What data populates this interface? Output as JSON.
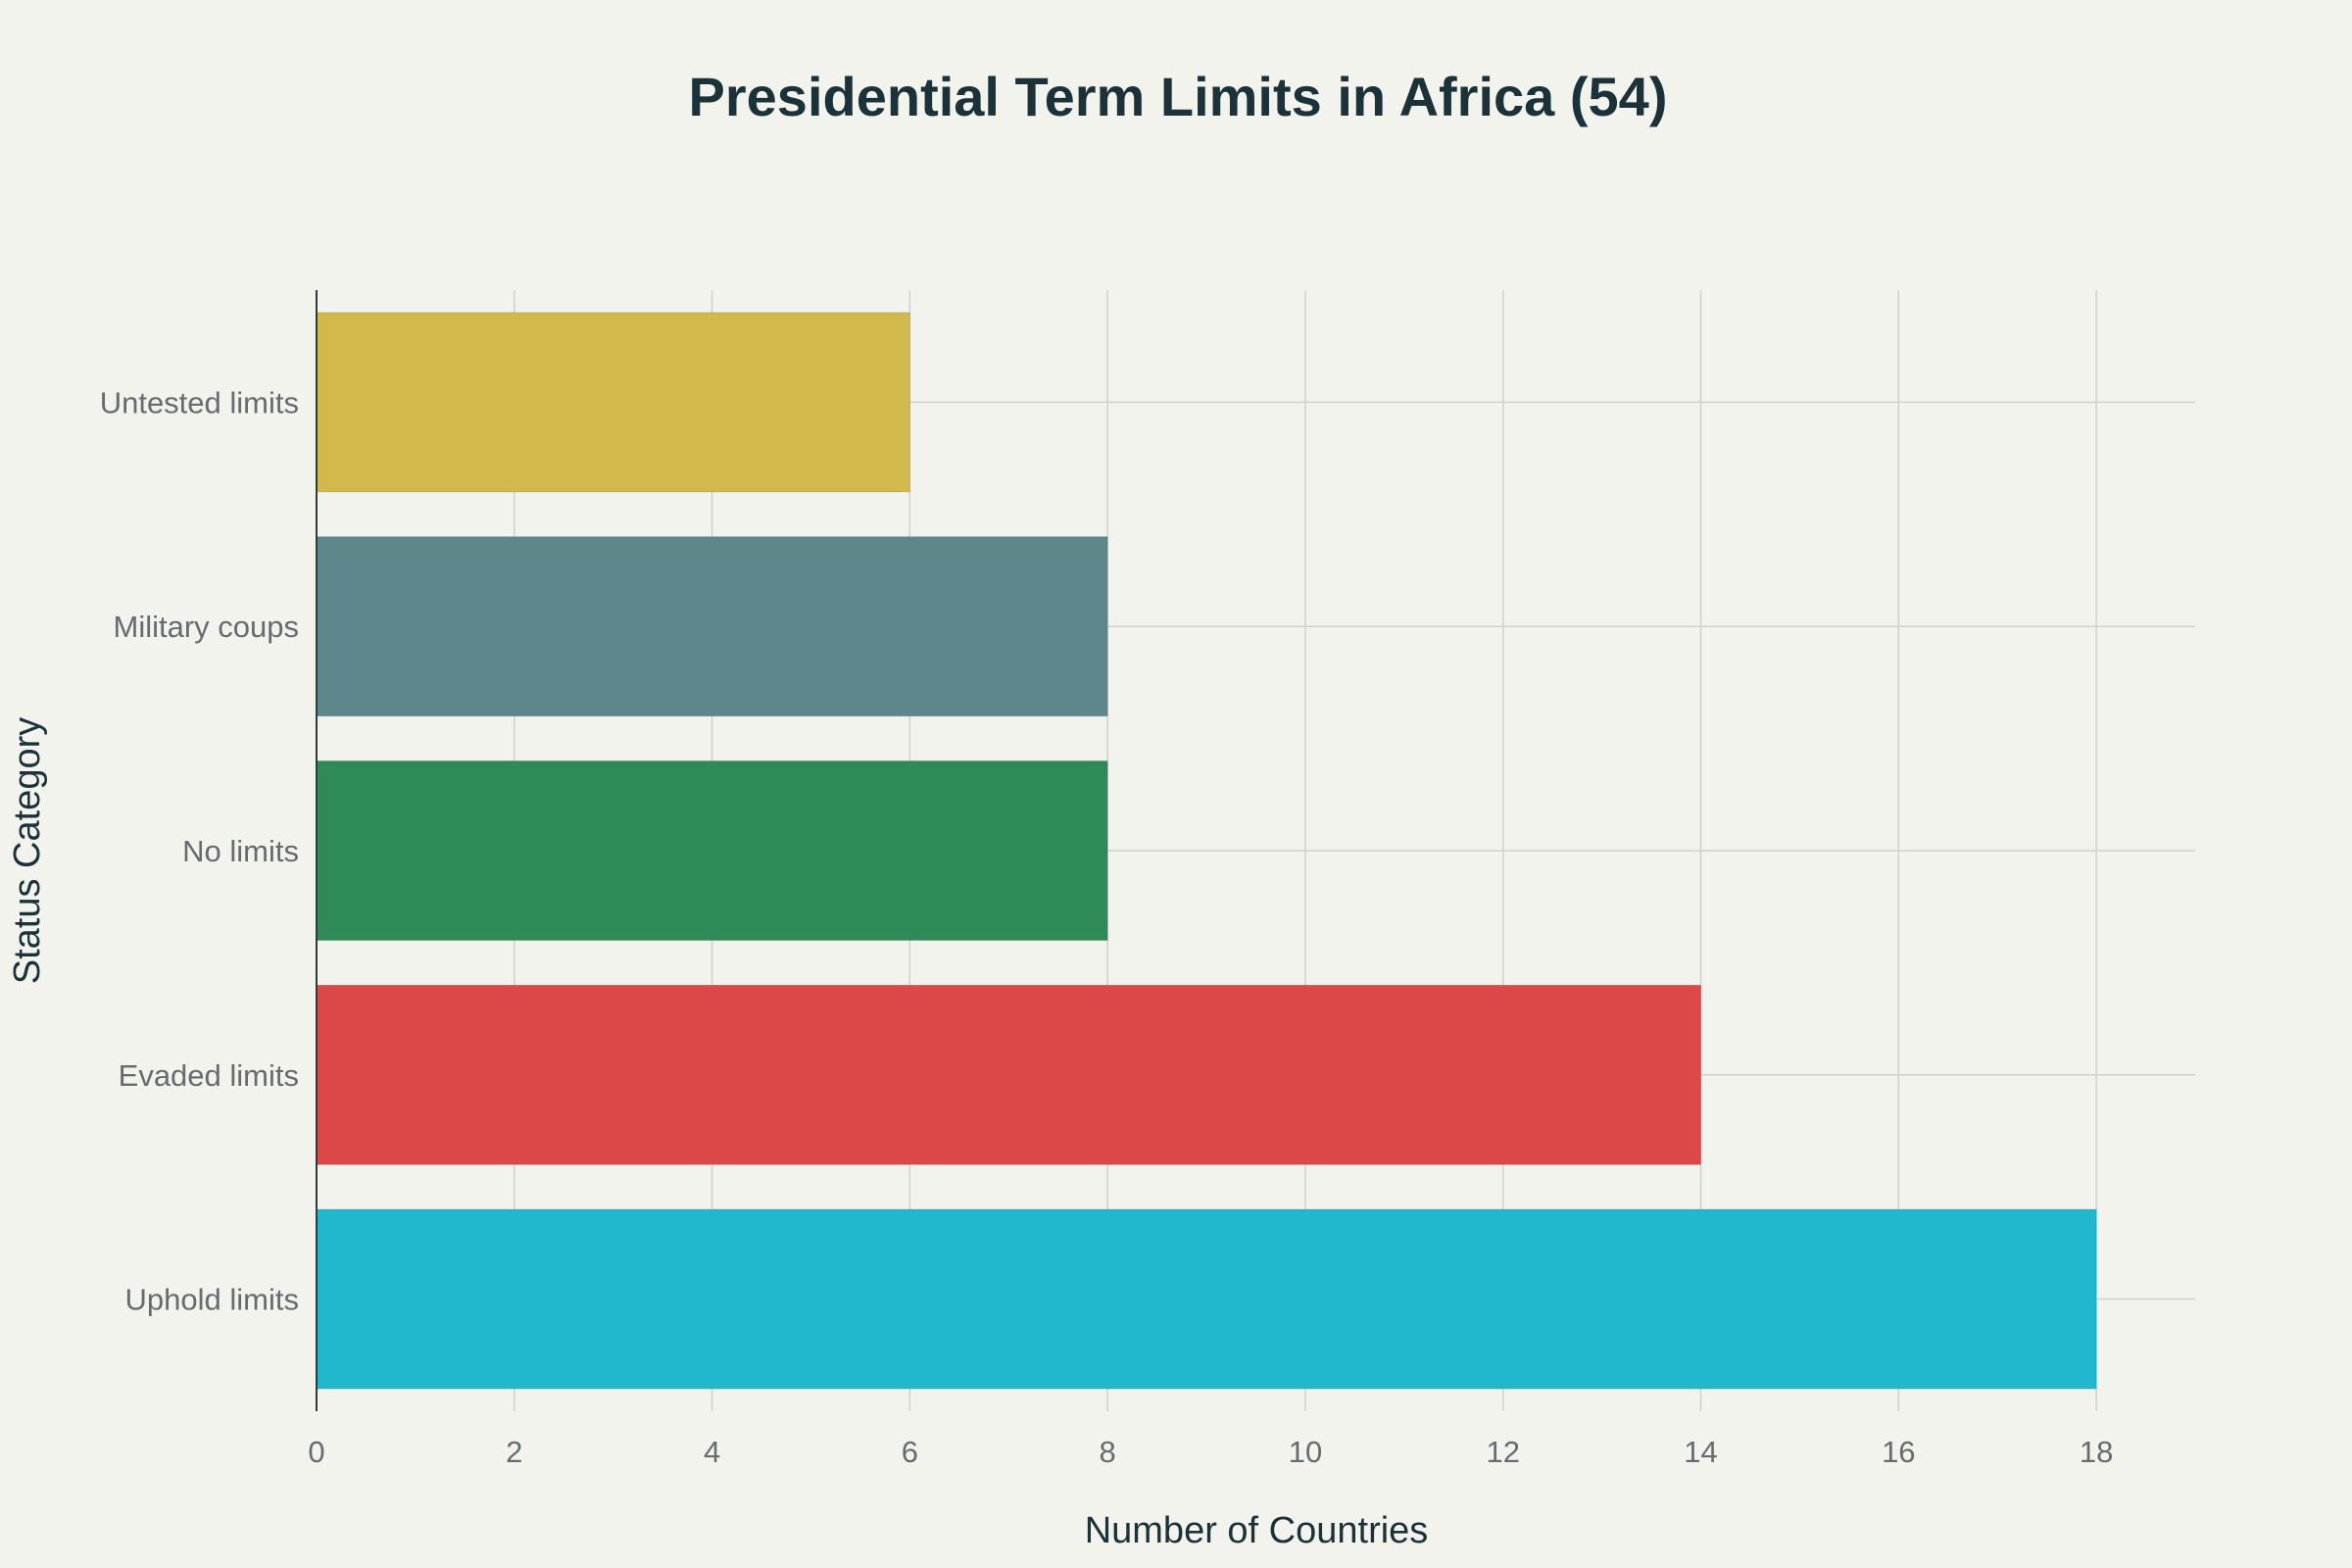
{
  "chart_data": {
    "type": "bar",
    "orientation": "horizontal",
    "title": "Presidential Term Limits in Africa (54)",
    "xlabel": "Number of Countries",
    "ylabel": "Status Category",
    "categories": [
      "Uphold limits",
      "Evaded limits",
      "No limits",
      "Military coups",
      "Untested limits"
    ],
    "values": [
      18,
      14,
      8,
      8,
      6
    ],
    "colors": [
      "#21b7cc",
      "#dc4747",
      "#2e8b57",
      "#5e878c",
      "#d3b94c"
    ],
    "xlim": [
      0,
      19
    ],
    "xticks": [
      "0",
      "2",
      "4",
      "6",
      "8",
      "10",
      "12",
      "14",
      "16",
      "18"
    ],
    "grid": true,
    "legend": "none"
  }
}
